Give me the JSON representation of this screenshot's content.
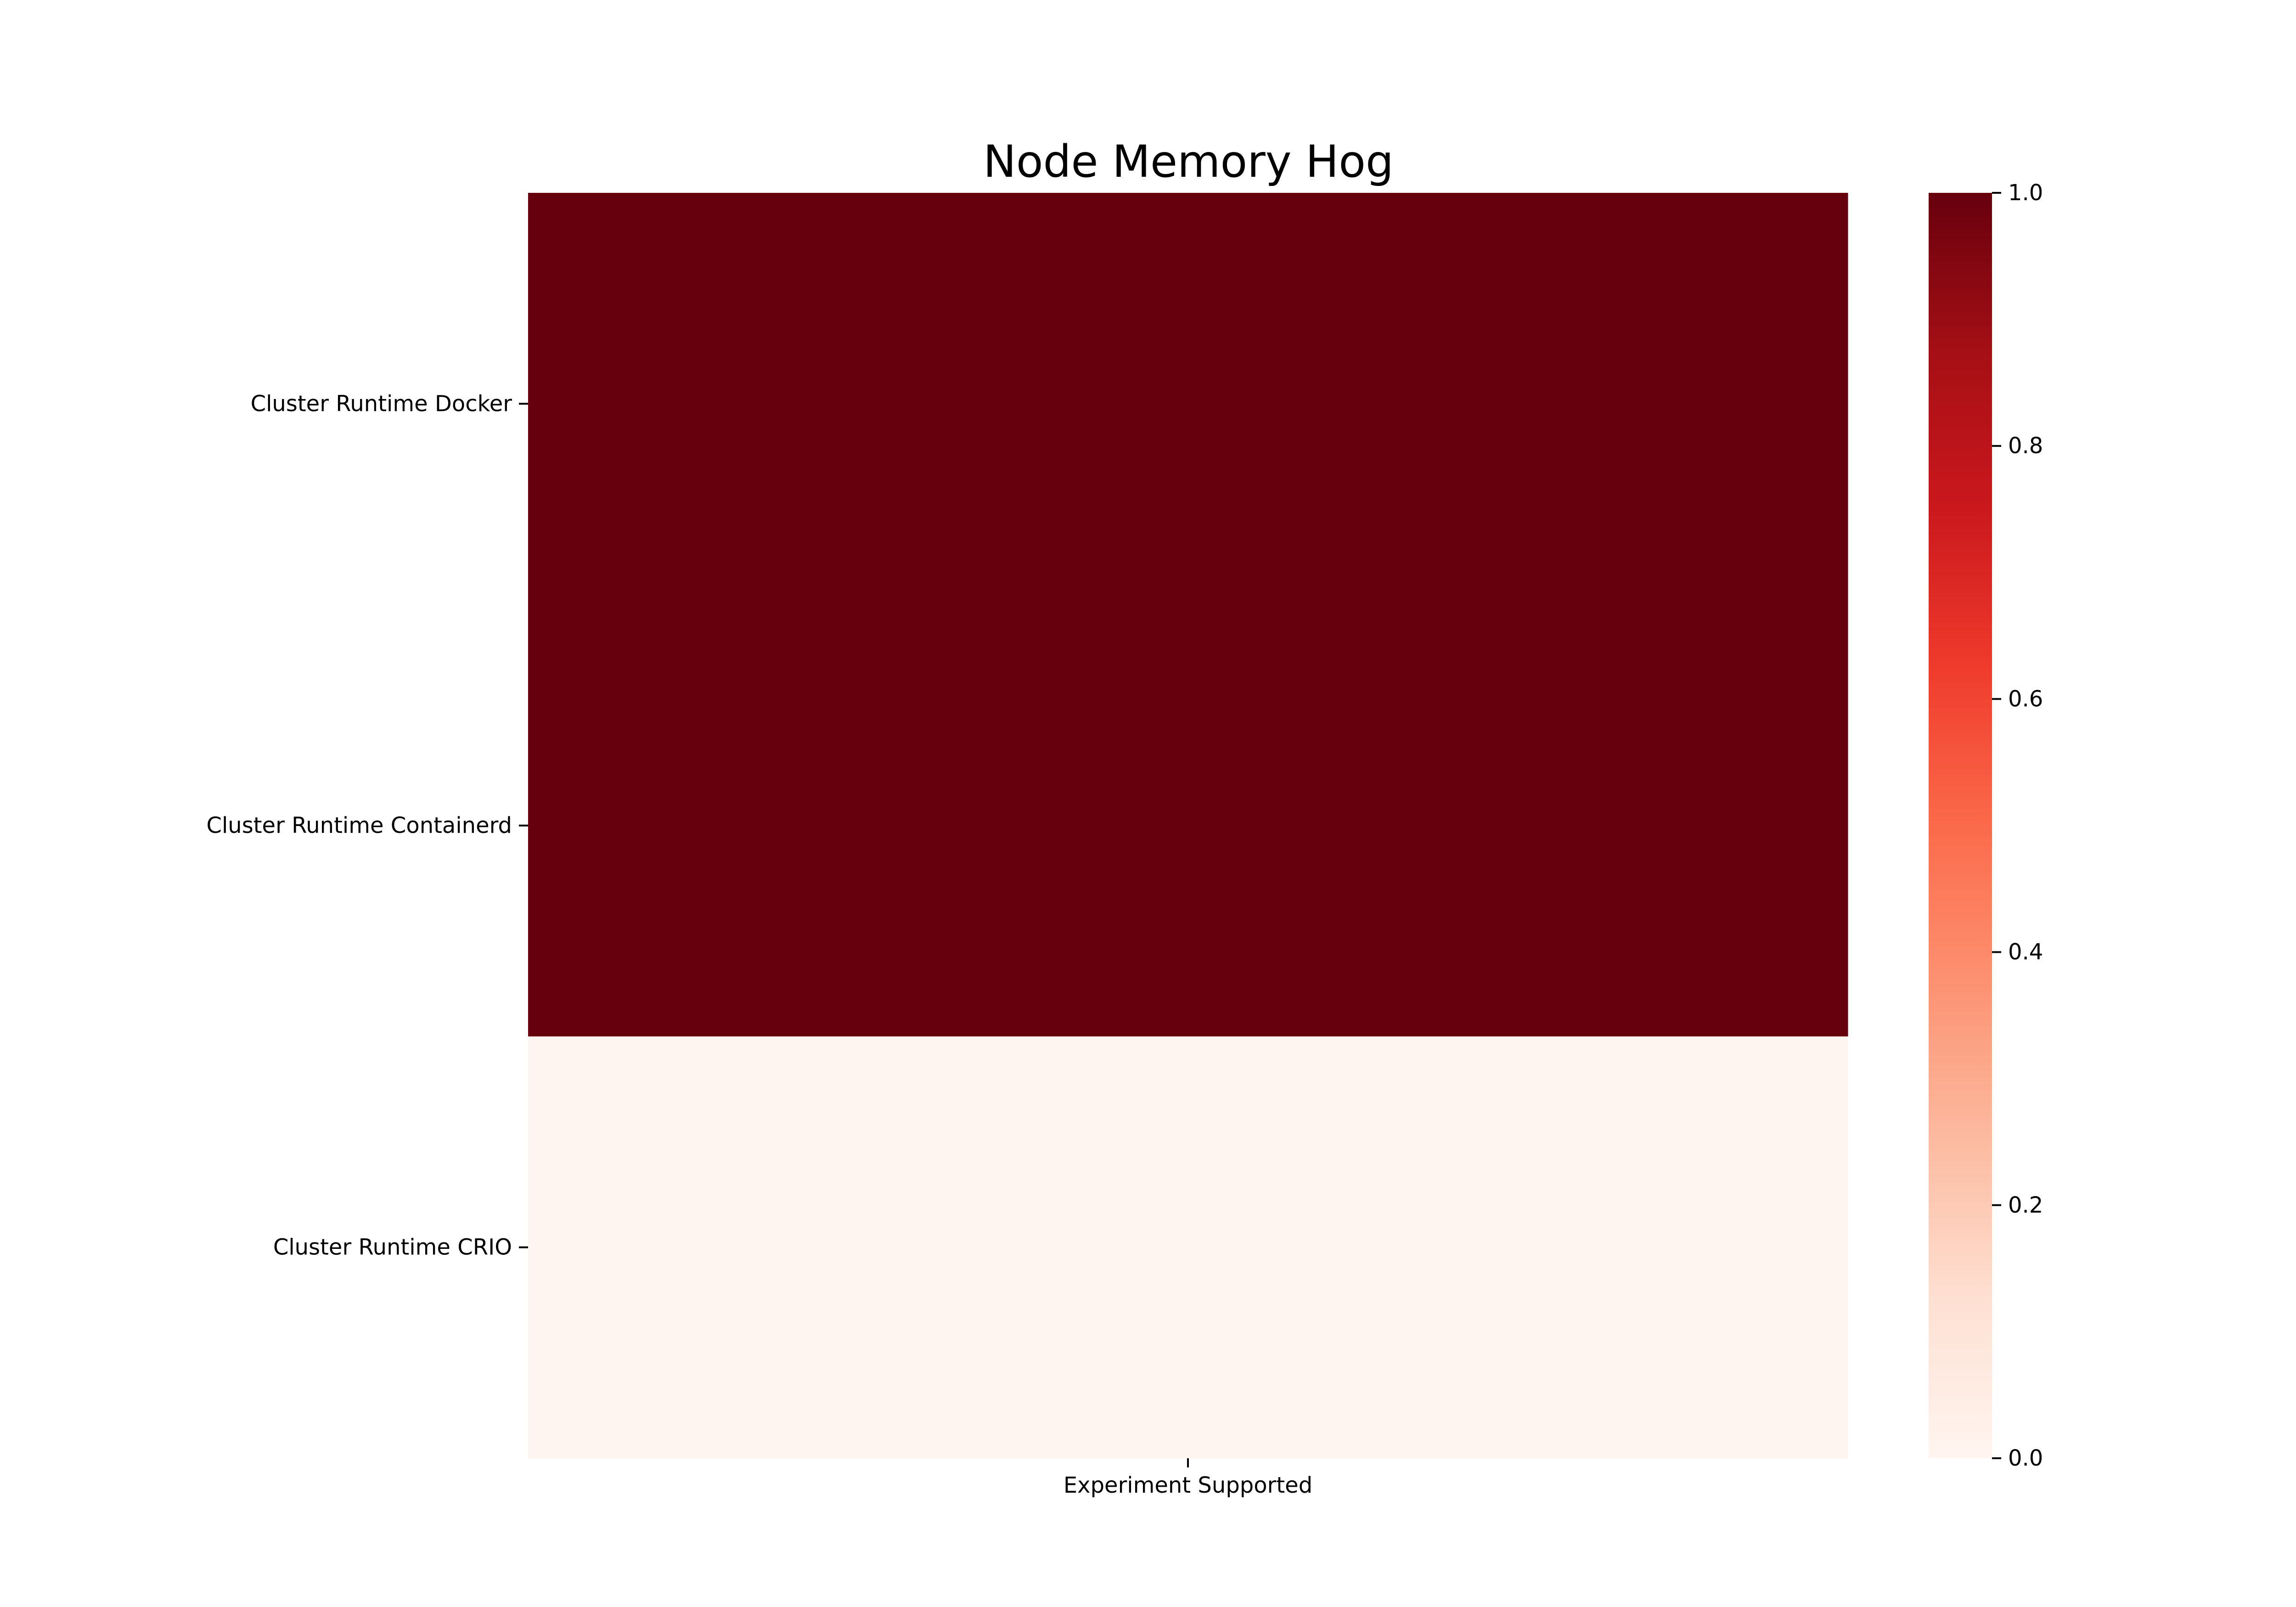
{
  "chart_data": {
    "type": "heatmap",
    "title": "Node Memory Hog",
    "x_categories": [
      "Experiment Supported"
    ],
    "y_categories": [
      "Cluster Runtime Docker",
      "Cluster Runtime Containerd",
      "Cluster Runtime CRIO"
    ],
    "values": [
      [
        1
      ],
      [
        1
      ],
      [
        0
      ]
    ],
    "colorbar": {
      "range": [
        0,
        1
      ],
      "ticks": [
        "0.0",
        "0.2",
        "0.4",
        "0.6",
        "0.8",
        "1.0"
      ],
      "colormap": "Reds",
      "low_color": "#fff5f0",
      "high_color": "#67000d"
    },
    "grid": false,
    "legend": "colorbar-right"
  }
}
